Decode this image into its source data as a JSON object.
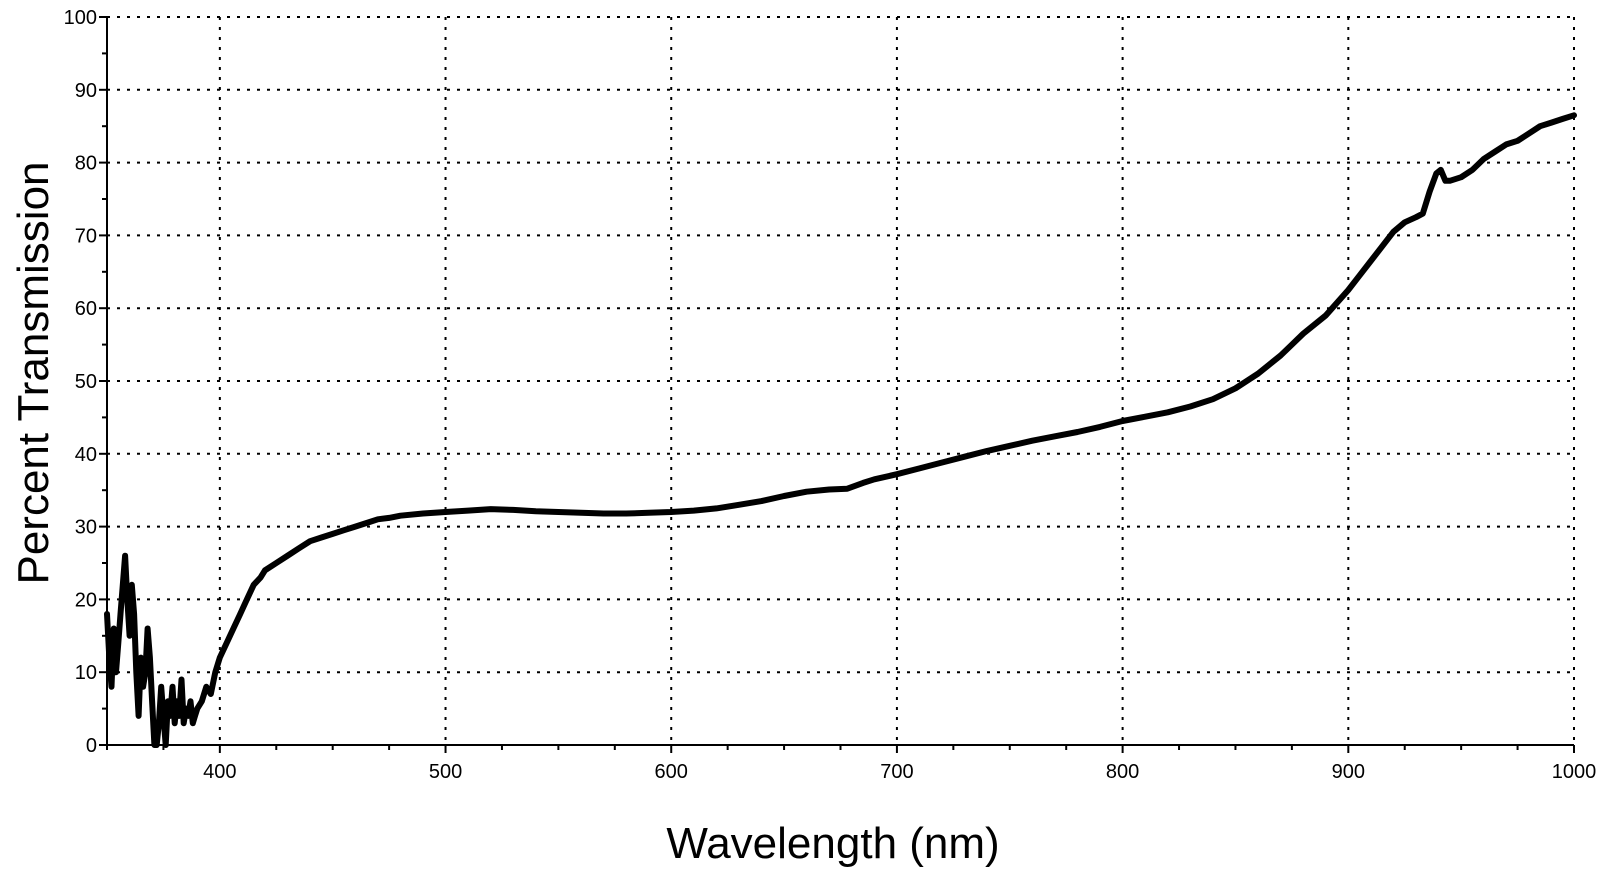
{
  "chart_data": {
    "type": "line",
    "title": "",
    "xlabel": "Wavelength (nm)",
    "ylabel": "Percent Transmission",
    "xlim": [
      350,
      1000
    ],
    "ylim": [
      0,
      100
    ],
    "grid": true,
    "x_ticks": [
      400,
      500,
      600,
      700,
      800,
      900,
      1000
    ],
    "y_ticks": [
      0,
      10,
      20,
      30,
      40,
      50,
      60,
      70,
      80,
      90,
      100
    ],
    "x_tick_labels": [
      "400",
      "500",
      "600",
      "700",
      "800",
      "900",
      "1000"
    ],
    "y_tick_labels": [
      "0",
      "10",
      "20",
      "30",
      "40",
      "50",
      "60",
      "70",
      "80",
      "90",
      "100"
    ],
    "line_color": "#000000",
    "series": [
      {
        "x": [
          350,
          351,
          352,
          353,
          354,
          355,
          356,
          357,
          358,
          359,
          360,
          361,
          362,
          363,
          364,
          365,
          366,
          367,
          368,
          369,
          370,
          371,
          372,
          373,
          374,
          375,
          376,
          377,
          378,
          379,
          380,
          381,
          382,
          383,
          384,
          385,
          386,
          387,
          388,
          389,
          390,
          392,
          394,
          396,
          398,
          400,
          403,
          406,
          409,
          412,
          415,
          418,
          420,
          425,
          430,
          435,
          440,
          445,
          450,
          455,
          460,
          465,
          470,
          475,
          480,
          490,
          500,
          510,
          520,
          530,
          540,
          550,
          560,
          570,
          580,
          590,
          600,
          610,
          620,
          630,
          640,
          650,
          660,
          670,
          678,
          685,
          690,
          700,
          710,
          720,
          730,
          740,
          750,
          760,
          770,
          780,
          790,
          800,
          810,
          820,
          830,
          840,
          850,
          860,
          870,
          875,
          880,
          890,
          900,
          905,
          910,
          915,
          920,
          925,
          930,
          933,
          936,
          939,
          941,
          943,
          945,
          950,
          955,
          960,
          965,
          970,
          975,
          980,
          985,
          990,
          995,
          1000
        ],
        "y": [
          18,
          12,
          8,
          16,
          10,
          14,
          18,
          22,
          26,
          20,
          15,
          22,
          18,
          10,
          4,
          12,
          8,
          10,
          16,
          12,
          6,
          0,
          0,
          3,
          8,
          4,
          0,
          6,
          4,
          8,
          3,
          6,
          4,
          9,
          3,
          5,
          4,
          6,
          3,
          4,
          5,
          6,
          8,
          7,
          10,
          12,
          14,
          16,
          18,
          20,
          22,
          23,
          24,
          25,
          26,
          27,
          28,
          28.5,
          29,
          29.5,
          30,
          30.5,
          31,
          31.2,
          31.5,
          31.8,
          32,
          32.2,
          32.4,
          32.3,
          32.1,
          32,
          31.9,
          31.8,
          31.8,
          31.9,
          32,
          32.2,
          32.5,
          33,
          33.5,
          34.2,
          34.8,
          35.1,
          35.2,
          36,
          36.5,
          37.2,
          38,
          38.8,
          39.6,
          40.4,
          41.1,
          41.8,
          42.4,
          43,
          43.7,
          44.5,
          45.1,
          45.7,
          46.5,
          47.5,
          49,
          51,
          53.5,
          55,
          56.5,
          59,
          62.5,
          64.5,
          66.5,
          68.5,
          70.5,
          71.8,
          72.5,
          73,
          76,
          78.5,
          79,
          77.5,
          77.5,
          78,
          79,
          80.5,
          81.5,
          82.5,
          83,
          84,
          85,
          85.5,
          86,
          86.5
        ]
      }
    ]
  }
}
